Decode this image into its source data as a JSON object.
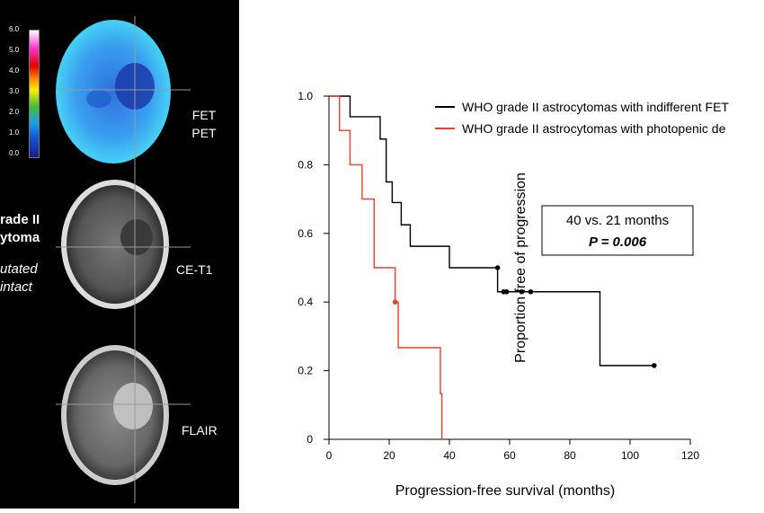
{
  "left_panel": {
    "colorbar_ticks": [
      "6.0",
      "5.0",
      "4.0",
      "3.0",
      "2.0",
      "1.0",
      "0.0"
    ],
    "title_lines": [
      "rade II",
      "ytoma"
    ],
    "subtitle_lines": [
      "utated",
      "intact"
    ],
    "modality_labels": {
      "fet_pet": [
        "FET",
        "PET"
      ],
      "ce_t1": "CE-T1",
      "flair": "FLAIR"
    }
  },
  "chart_data": {
    "type": "line",
    "ylabel": "Proportion free of progression",
    "xlabel": "Progression-free survival (months)",
    "xlim": [
      0,
      120
    ],
    "ylim": [
      0,
      1.0
    ],
    "xticks": [
      0,
      20,
      40,
      60,
      80,
      100,
      120
    ],
    "yticks": [
      0,
      0.2,
      0.4,
      0.6,
      0.8,
      1.0
    ],
    "ytick_labels": [
      "0",
      "0.2",
      "0.4",
      "0.6",
      "0.8",
      "1.0"
    ],
    "legend_position": "top-right",
    "annotation": {
      "line1": "40  vs. 21 months",
      "line2": "P = 0.006"
    },
    "series": [
      {
        "name": "WHO grade II astrocytomas with indifferent FET",
        "color": "#000000",
        "steps": [
          [
            0,
            1.0
          ],
          [
            7,
            1.0
          ],
          [
            7,
            0.94
          ],
          [
            17,
            0.94
          ],
          [
            17,
            0.875
          ],
          [
            19,
            0.875
          ],
          [
            19,
            0.75
          ],
          [
            21,
            0.75
          ],
          [
            21,
            0.69
          ],
          [
            24,
            0.69
          ],
          [
            24,
            0.625
          ],
          [
            27,
            0.625
          ],
          [
            27,
            0.5625
          ],
          [
            40,
            0.5625
          ],
          [
            40,
            0.5
          ],
          [
            56,
            0.5
          ],
          [
            56,
            0.43
          ],
          [
            90,
            0.43
          ],
          [
            90,
            0.215
          ],
          [
            108,
            0.215
          ]
        ],
        "censored": [
          [
            56,
            0.5
          ],
          [
            58,
            0.43
          ],
          [
            59,
            0.43
          ],
          [
            64,
            0.43
          ],
          [
            67,
            0.43
          ],
          [
            108,
            0.215
          ]
        ]
      },
      {
        "name": "WHO grade II astrocytomas with photopenic de",
        "color": "#e8402a",
        "steps": [
          [
            0,
            1.0
          ],
          [
            3.5,
            1.0
          ],
          [
            3.5,
            0.9
          ],
          [
            7,
            0.9
          ],
          [
            7,
            0.8
          ],
          [
            11,
            0.8
          ],
          [
            11,
            0.7
          ],
          [
            15,
            0.7
          ],
          [
            15,
            0.5
          ],
          [
            22,
            0.5
          ],
          [
            22,
            0.4
          ],
          [
            23,
            0.4
          ],
          [
            23,
            0.267
          ],
          [
            37,
            0.267
          ],
          [
            37,
            0.133
          ],
          [
            37.5,
            0.133
          ],
          [
            37.5,
            0
          ]
        ],
        "censored": [
          [
            22,
            0.4
          ]
        ]
      }
    ]
  }
}
